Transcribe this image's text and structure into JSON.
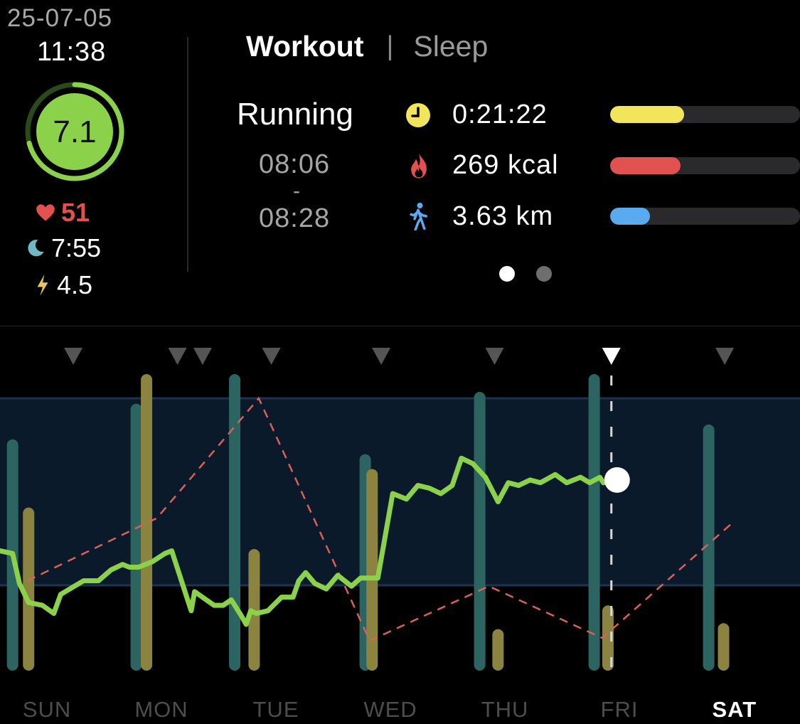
{
  "header": {
    "date": "25-07-05",
    "time": "11:38"
  },
  "score": {
    "value": "7.1",
    "fraction": 0.71,
    "color": "#8bd14a"
  },
  "stats": {
    "heart_rate": "51",
    "sleep": "7:55",
    "energy": "4.5"
  },
  "tabs": [
    {
      "label": "Workout",
      "active": true
    },
    {
      "label": "Sleep",
      "active": false
    }
  ],
  "tab_separator": "|",
  "workout": {
    "activity": "Running",
    "start": "08:06",
    "separator": "-",
    "end": "08:28",
    "metrics": [
      {
        "icon": "clock-icon",
        "value": "0:21:22",
        "bar_fraction": 0.39,
        "color": "#f2e55b"
      },
      {
        "icon": "flame-icon",
        "value": "269 kcal",
        "bar_fraction": 0.37,
        "color": "#e0514f"
      },
      {
        "icon": "walking-icon",
        "value": "3.63 km",
        "bar_fraction": 0.21,
        "color": "#5aaaf0"
      }
    ]
  },
  "pager": {
    "pages": 2,
    "current": 0
  },
  "chart_data": {
    "type": "line",
    "days": [
      "SUN",
      "MON",
      "TUE",
      "WED",
      "THU",
      "FRI",
      "SAT"
    ],
    "highlight_day": "SAT",
    "band_color": "#0b1a2a",
    "markers": [
      {
        "x": 0.23,
        "current": false
      },
      {
        "x": 1.14,
        "current": false
      },
      {
        "x": 1.36,
        "current": false
      },
      {
        "x": 1.96,
        "current": false
      },
      {
        "x": 2.92,
        "current": false
      },
      {
        "x": 3.91,
        "current": false
      },
      {
        "x": 4.93,
        "current": true
      },
      {
        "x": 5.92,
        "current": false
      }
    ],
    "bars_teal": [
      {
        "x": -0.3,
        "v": 0.78
      },
      {
        "x": 0.78,
        "v": 0.9
      },
      {
        "x": 1.64,
        "v": 1.0
      },
      {
        "x": 2.78,
        "v": 0.73
      },
      {
        "x": 3.78,
        "v": 0.94
      },
      {
        "x": 4.78,
        "v": 1.0
      },
      {
        "x": 5.78,
        "v": 0.83
      }
    ],
    "bars_olive": [
      {
        "x": -0.16,
        "v": 0.55
      },
      {
        "x": 0.87,
        "v": 1.0
      },
      {
        "x": 1.81,
        "v": 0.41
      },
      {
        "x": 2.84,
        "v": 0.68
      },
      {
        "x": 3.94,
        "v": 0.14
      },
      {
        "x": 4.9,
        "v": 0.22
      },
      {
        "x": 5.91,
        "v": 0.16
      }
    ],
    "dashed_series": [
      {
        "x": -0.17,
        "y": 0.33
      },
      {
        "x": 0.96,
        "y": 0.56
      },
      {
        "x": 1.85,
        "y": 1.0
      },
      {
        "x": 2.82,
        "y": 0.11
      },
      {
        "x": 3.86,
        "y": 0.31
      },
      {
        "x": 4.85,
        "y": 0.12
      },
      {
        "x": 5.98,
        "y": 0.54
      }
    ],
    "main_series": [
      {
        "x": -0.41,
        "y": 0.44
      },
      {
        "x": -0.3,
        "y": 0.43
      },
      {
        "x": -0.24,
        "y": 0.32
      },
      {
        "x": -0.16,
        "y": 0.25
      },
      {
        "x": -0.04,
        "y": 0.24
      },
      {
        "x": 0.06,
        "y": 0.21
      },
      {
        "x": 0.12,
        "y": 0.28
      },
      {
        "x": 0.24,
        "y": 0.31
      },
      {
        "x": 0.32,
        "y": 0.33
      },
      {
        "x": 0.45,
        "y": 0.33
      },
      {
        "x": 0.56,
        "y": 0.37
      },
      {
        "x": 0.66,
        "y": 0.39
      },
      {
        "x": 0.72,
        "y": 0.38
      },
      {
        "x": 0.8,
        "y": 0.38
      },
      {
        "x": 0.92,
        "y": 0.4
      },
      {
        "x": 1.03,
        "y": 0.43
      },
      {
        "x": 1.09,
        "y": 0.44
      },
      {
        "x": 1.26,
        "y": 0.22
      },
      {
        "x": 1.29,
        "y": 0.29
      },
      {
        "x": 1.46,
        "y": 0.24
      },
      {
        "x": 1.54,
        "y": 0.24
      },
      {
        "x": 1.61,
        "y": 0.26
      },
      {
        "x": 1.7,
        "y": 0.2
      },
      {
        "x": 1.74,
        "y": 0.17
      },
      {
        "x": 1.78,
        "y": 0.22
      },
      {
        "x": 1.83,
        "y": 0.21
      },
      {
        "x": 1.93,
        "y": 0.22
      },
      {
        "x": 2.05,
        "y": 0.27
      },
      {
        "x": 2.15,
        "y": 0.27
      },
      {
        "x": 2.2,
        "y": 0.33
      },
      {
        "x": 2.26,
        "y": 0.36
      },
      {
        "x": 2.34,
        "y": 0.32
      },
      {
        "x": 2.44,
        "y": 0.3
      },
      {
        "x": 2.54,
        "y": 0.35
      },
      {
        "x": 2.66,
        "y": 0.31
      },
      {
        "x": 2.74,
        "y": 0.34
      },
      {
        "x": 2.89,
        "y": 0.34
      },
      {
        "x": 3.02,
        "y": 0.65
      },
      {
        "x": 3.14,
        "y": 0.63
      },
      {
        "x": 3.24,
        "y": 0.68
      },
      {
        "x": 3.34,
        "y": 0.67
      },
      {
        "x": 3.44,
        "y": 0.65
      },
      {
        "x": 3.54,
        "y": 0.68
      },
      {
        "x": 3.62,
        "y": 0.78
      },
      {
        "x": 3.72,
        "y": 0.76
      },
      {
        "x": 3.83,
        "y": 0.71
      },
      {
        "x": 3.94,
        "y": 0.62
      },
      {
        "x": 4.03,
        "y": 0.69
      },
      {
        "x": 4.12,
        "y": 0.68
      },
      {
        "x": 4.22,
        "y": 0.7
      },
      {
        "x": 4.31,
        "y": 0.69
      },
      {
        "x": 4.44,
        "y": 0.72
      },
      {
        "x": 4.54,
        "y": 0.69
      },
      {
        "x": 4.66,
        "y": 0.71
      },
      {
        "x": 4.74,
        "y": 0.69
      },
      {
        "x": 4.83,
        "y": 0.71
      },
      {
        "x": 4.86,
        "y": 0.69
      }
    ],
    "end_point": {
      "x": 4.98,
      "y": 0.7
    }
  }
}
